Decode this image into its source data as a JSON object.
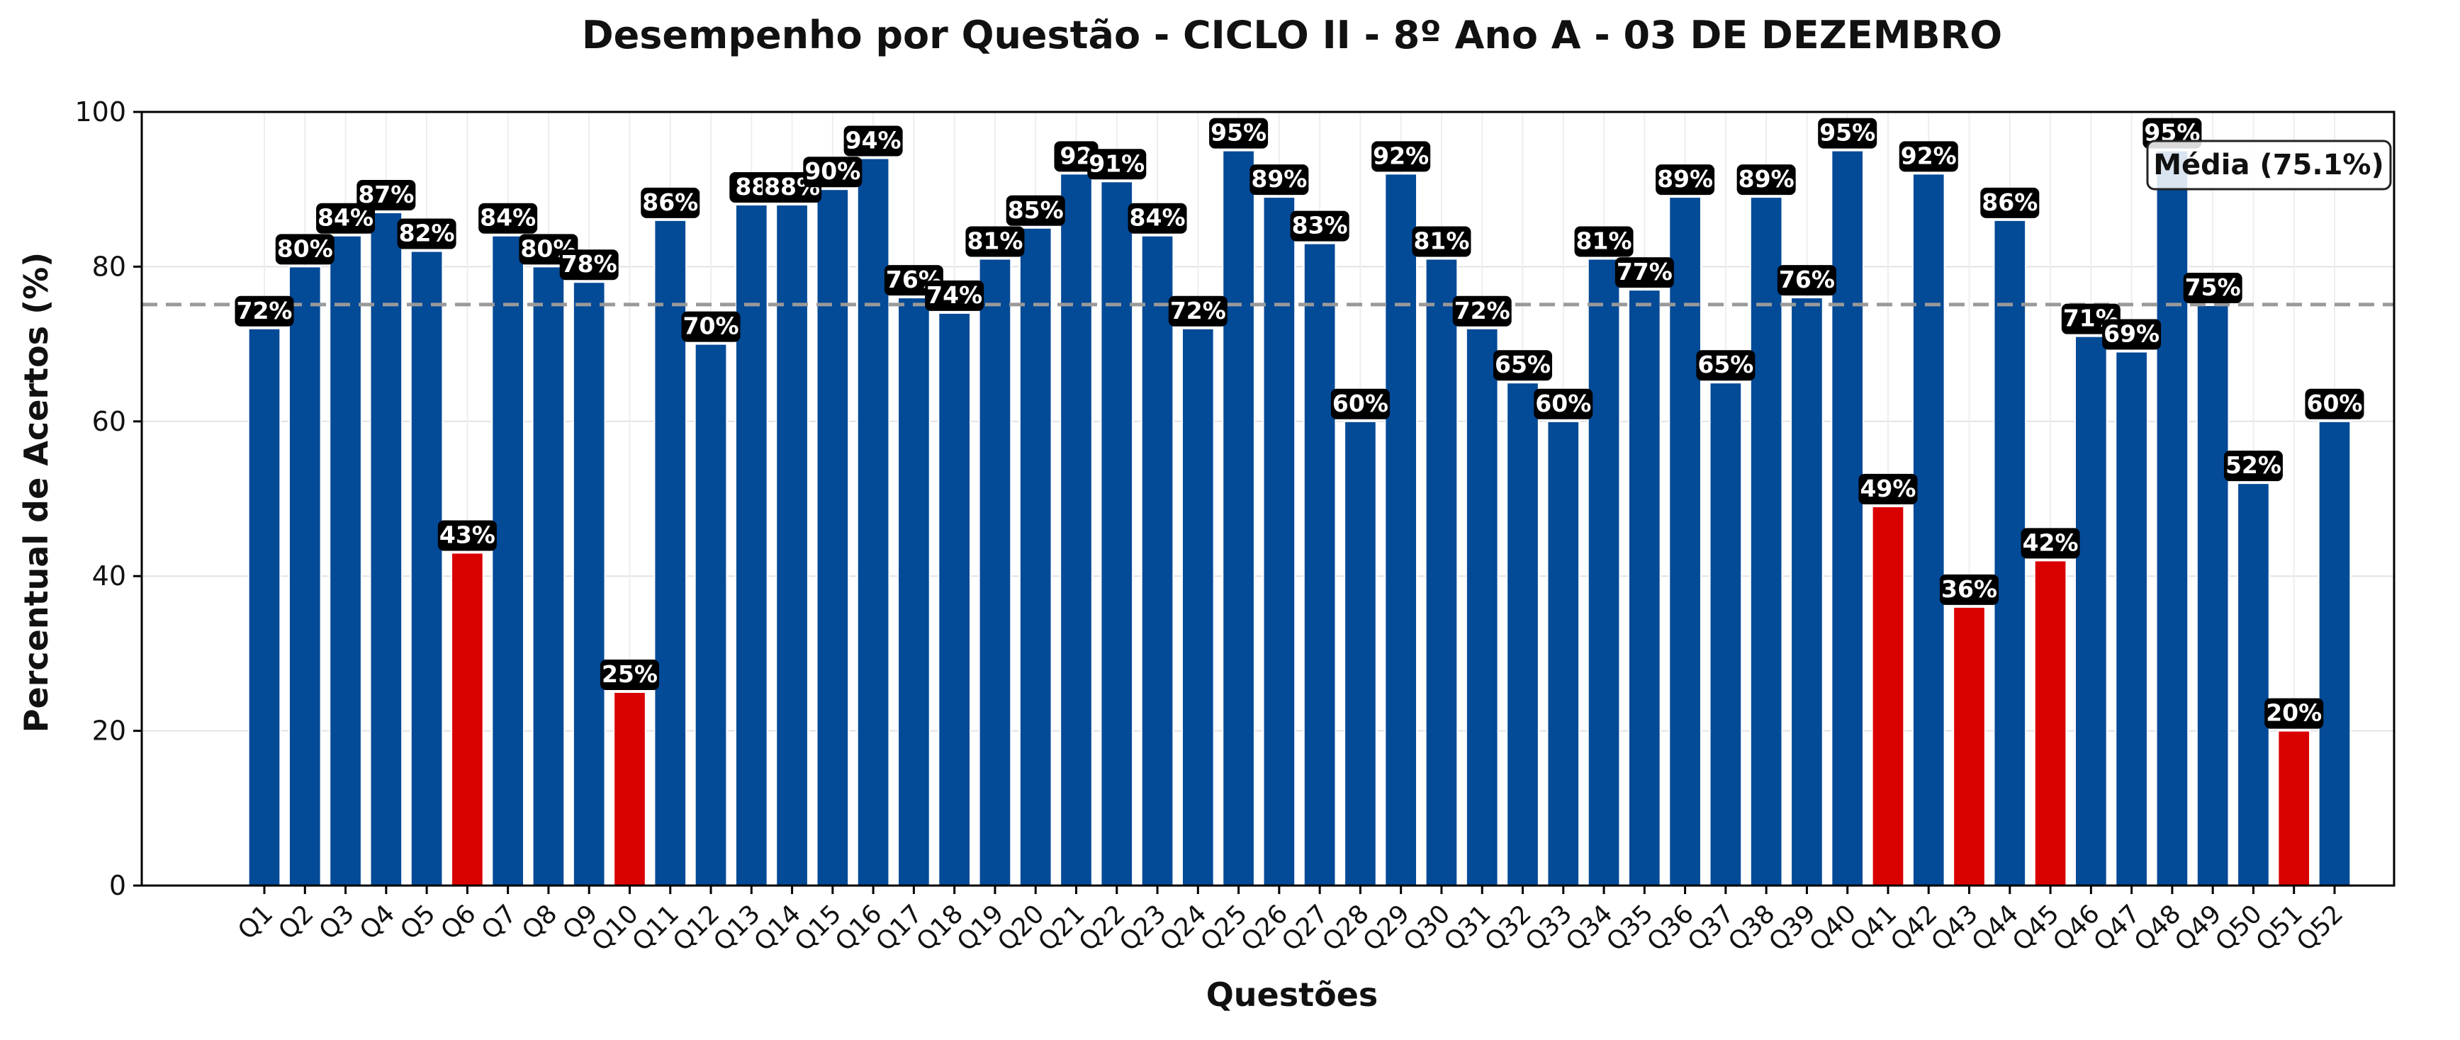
{
  "chart_data": {
    "type": "bar",
    "title": "Desempenho por Questão - CICLO II - 8º Ano A - 03 DE DEZEMBRO",
    "xlabel": "Questões",
    "ylabel": "Percentual de Acertos (%)",
    "ylim": [
      0,
      100
    ],
    "yticks": [
      0,
      20,
      40,
      60,
      80,
      100
    ],
    "grid": true,
    "categories": [
      "Q1",
      "Q2",
      "Q3",
      "Q4",
      "Q5",
      "Q6",
      "Q7",
      "Q8",
      "Q9",
      "Q10",
      "Q11",
      "Q12",
      "Q13",
      "Q14",
      "Q15",
      "Q16",
      "Q17",
      "Q18",
      "Q19",
      "Q20",
      "Q21",
      "Q22",
      "Q23",
      "Q24",
      "Q25",
      "Q26",
      "Q27",
      "Q28",
      "Q29",
      "Q30",
      "Q31",
      "Q32",
      "Q33",
      "Q34",
      "Q35",
      "Q36",
      "Q37",
      "Q38",
      "Q39",
      "Q40",
      "Q41",
      "Q42",
      "Q43",
      "Q44",
      "Q45",
      "Q46",
      "Q47",
      "Q48",
      "Q49",
      "Q50",
      "Q51",
      "Q52"
    ],
    "values": [
      72,
      80,
      84,
      87,
      82,
      43,
      84,
      80,
      78,
      25,
      86,
      70,
      88,
      88,
      90,
      94,
      76,
      74,
      81,
      85,
      92,
      91,
      84,
      72,
      95,
      89,
      83,
      60,
      92,
      81,
      72,
      65,
      60,
      81,
      77,
      89,
      65,
      89,
      76,
      95,
      49,
      92,
      36,
      86,
      42,
      71,
      69,
      95,
      75,
      52,
      20,
      60
    ],
    "value_labels": [
      "72%",
      "80%",
      "84%",
      "87%",
      "82%",
      "43%",
      "84%",
      "80%",
      "78%",
      "25%",
      "86%",
      "70%",
      "88",
      "88%",
      "90%",
      "94%",
      "76%",
      "74%",
      "81%",
      "85%",
      "92",
      "91%",
      "84%",
      "72%",
      "95%",
      "89%",
      "83%",
      "60%",
      "92%",
      "81%",
      "72%",
      "65%",
      "60%",
      "81%",
      "77%",
      "89%",
      "65%",
      "89%",
      "76%",
      "95%",
      "49%",
      "92%",
      "36%",
      "86%",
      "42%",
      "71%",
      "69%",
      "95%",
      "75%",
      "52%",
      "20%",
      "60%"
    ],
    "highlight_threshold": 50,
    "colors": {
      "bar": "#034a97",
      "bar_low": "#d90000",
      "mean_line": "#999999",
      "label_bg": "#000000",
      "label_text": "#ffffff"
    },
    "mean": {
      "value": 75.1,
      "label": "Média (75.1%)",
      "legend_position": "top-right"
    }
  }
}
